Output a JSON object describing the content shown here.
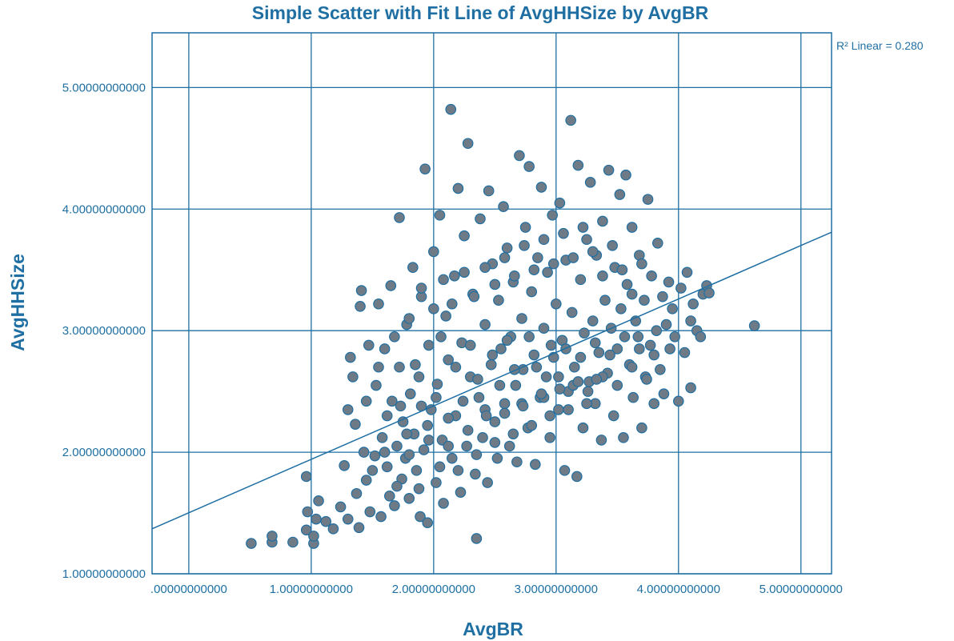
{
  "chart_data": {
    "type": "scatter",
    "title": "Simple Scatter with Fit Line of AvgHHSize by AvgBR",
    "xlabel": "AvgBR",
    "ylabel": "AvgHHSize",
    "xlim": [
      -0.3,
      5.25
    ],
    "ylim": [
      1.0,
      5.45
    ],
    "x_ticks": [
      0,
      1,
      2,
      3,
      4,
      5
    ],
    "y_ticks": [
      1,
      2,
      3,
      4,
      5
    ],
    "x_tick_labels": [
      ".00000000000",
      "1.00000000000",
      "2.00000000000",
      "3.00000000000",
      "4.00000000000",
      "5.00000000000"
    ],
    "y_tick_labels": [
      "1.00000000000",
      "2.00000000000",
      "3.00000000000",
      "4.00000000000",
      "5.00000000000"
    ],
    "grid": true,
    "fit_line": {
      "type": "linear",
      "r2_label": "R² Linear = 0.280",
      "x": [
        -0.3,
        5.25
      ],
      "y": [
        1.37,
        3.81
      ]
    },
    "colors": {
      "axis": "#1f6fa3",
      "marker_fill": "#6e7b86",
      "marker_edge": "#1f6fa3",
      "line": "#1f6fa3"
    },
    "points": [
      [
        0.51,
        1.25
      ],
      [
        0.68,
        1.26
      ],
      [
        0.68,
        1.31
      ],
      [
        0.85,
        1.26
      ],
      [
        0.96,
        1.36
      ],
      [
        0.97,
        1.51
      ],
      [
        0.96,
        1.8
      ],
      [
        1.02,
        1.25
      ],
      [
        1.02,
        1.31
      ],
      [
        1.04,
        1.45
      ],
      [
        1.06,
        1.6
      ],
      [
        1.12,
        1.43
      ],
      [
        1.18,
        1.37
      ],
      [
        1.24,
        1.55
      ],
      [
        1.27,
        1.89
      ],
      [
        1.3,
        1.45
      ],
      [
        1.3,
        2.35
      ],
      [
        1.32,
        2.78
      ],
      [
        1.34,
        2.62
      ],
      [
        1.36,
        2.23
      ],
      [
        1.37,
        1.66
      ],
      [
        1.39,
        1.38
      ],
      [
        1.4,
        3.2
      ],
      [
        1.41,
        3.33
      ],
      [
        1.43,
        2.0
      ],
      [
        1.45,
        1.77
      ],
      [
        1.47,
        2.88
      ],
      [
        1.48,
        1.51
      ],
      [
        1.52,
        1.97
      ],
      [
        1.53,
        2.55
      ],
      [
        1.55,
        3.22
      ],
      [
        1.57,
        1.47
      ],
      [
        1.58,
        2.12
      ],
      [
        1.6,
        2.85
      ],
      [
        1.62,
        1.88
      ],
      [
        1.64,
        1.64
      ],
      [
        1.65,
        3.37
      ],
      [
        1.66,
        2.42
      ],
      [
        1.68,
        1.56
      ],
      [
        1.7,
        2.05
      ],
      [
        1.72,
        2.7
      ],
      [
        1.72,
        3.93
      ],
      [
        1.74,
        1.78
      ],
      [
        1.75,
        2.25
      ],
      [
        1.77,
        1.95
      ],
      [
        1.78,
        3.05
      ],
      [
        1.8,
        1.62
      ],
      [
        1.81,
        2.48
      ],
      [
        1.83,
        3.52
      ],
      [
        1.84,
        2.15
      ],
      [
        1.86,
        1.85
      ],
      [
        1.88,
        2.62
      ],
      [
        1.89,
        1.47
      ],
      [
        1.9,
        3.28
      ],
      [
        1.92,
        2.02
      ],
      [
        1.93,
        4.33
      ],
      [
        1.95,
        1.42
      ],
      [
        1.96,
        2.88
      ],
      [
        1.98,
        2.35
      ],
      [
        2.0,
        3.65
      ],
      [
        2.02,
        1.75
      ],
      [
        2.03,
        2.56
      ],
      [
        2.05,
        3.95
      ],
      [
        2.07,
        2.1
      ],
      [
        2.08,
        1.58
      ],
      [
        2.1,
        3.12
      ],
      [
        2.12,
        2.76
      ],
      [
        2.14,
        4.82
      ],
      [
        2.15,
        1.95
      ],
      [
        2.17,
        3.45
      ],
      [
        2.18,
        2.3
      ],
      [
        2.2,
        4.17
      ],
      [
        2.22,
        1.67
      ],
      [
        2.23,
        2.9
      ],
      [
        2.25,
        3.78
      ],
      [
        2.27,
        2.05
      ],
      [
        2.28,
        4.54
      ],
      [
        2.3,
        2.62
      ],
      [
        2.32,
        3.3
      ],
      [
        2.34,
        1.82
      ],
      [
        2.35,
        1.29
      ],
      [
        2.37,
        2.45
      ],
      [
        2.38,
        3.92
      ],
      [
        2.4,
        2.12
      ],
      [
        2.42,
        3.05
      ],
      [
        2.44,
        1.75
      ],
      [
        2.45,
        4.15
      ],
      [
        2.47,
        2.72
      ],
      [
        2.48,
        3.55
      ],
      [
        2.5,
        2.25
      ],
      [
        2.52,
        1.95
      ],
      [
        2.53,
        3.25
      ],
      [
        2.55,
        2.85
      ],
      [
        2.57,
        4.02
      ],
      [
        2.58,
        2.4
      ],
      [
        2.6,
        3.68
      ],
      [
        2.62,
        2.05
      ],
      [
        2.63,
        2.95
      ],
      [
        2.65,
        3.4
      ],
      [
        2.67,
        2.55
      ],
      [
        2.68,
        1.92
      ],
      [
        2.7,
        4.44
      ],
      [
        2.72,
        3.1
      ],
      [
        2.73,
        2.68
      ],
      [
        2.75,
        3.85
      ],
      [
        2.77,
        2.2
      ],
      [
        2.78,
        4.35
      ],
      [
        2.8,
        3.32
      ],
      [
        2.82,
        2.8
      ],
      [
        2.83,
        1.9
      ],
      [
        2.85,
        3.6
      ],
      [
        2.87,
        2.45
      ],
      [
        2.88,
        4.18
      ],
      [
        2.9,
        3.02
      ],
      [
        2.92,
        2.62
      ],
      [
        2.93,
        3.48
      ],
      [
        2.95,
        2.12
      ],
      [
        2.97,
        3.95
      ],
      [
        2.98,
        2.78
      ],
      [
        3.0,
        3.22
      ],
      [
        3.02,
        2.35
      ],
      [
        3.03,
        4.05
      ],
      [
        3.05,
        2.92
      ],
      [
        3.07,
        1.85
      ],
      [
        3.08,
        3.58
      ],
      [
        3.1,
        2.5
      ],
      [
        3.12,
        4.73
      ],
      [
        3.13,
        3.15
      ],
      [
        3.15,
        2.7
      ],
      [
        3.17,
        1.8
      ],
      [
        3.18,
        4.36
      ],
      [
        3.2,
        3.42
      ],
      [
        3.22,
        2.2
      ],
      [
        3.23,
        2.98
      ],
      [
        3.25,
        3.75
      ],
      [
        3.27,
        2.58
      ],
      [
        3.28,
        4.22
      ],
      [
        3.3,
        3.08
      ],
      [
        3.32,
        2.4
      ],
      [
        3.33,
        3.62
      ],
      [
        3.35,
        2.82
      ],
      [
        3.37,
        2.1
      ],
      [
        3.38,
        3.9
      ],
      [
        3.4,
        3.25
      ],
      [
        3.42,
        2.65
      ],
      [
        3.43,
        4.32
      ],
      [
        3.45,
        3.02
      ],
      [
        3.47,
        2.3
      ],
      [
        3.48,
        3.52
      ],
      [
        3.5,
        2.85
      ],
      [
        3.52,
        4.12
      ],
      [
        3.53,
        3.18
      ],
      [
        3.55,
        2.12
      ],
      [
        3.57,
        4.28
      ],
      [
        3.58,
        3.38
      ],
      [
        3.6,
        2.72
      ],
      [
        3.62,
        3.85
      ],
      [
        3.63,
        2.45
      ],
      [
        3.65,
        3.08
      ],
      [
        3.67,
        2.95
      ],
      [
        3.68,
        3.62
      ],
      [
        3.7,
        2.2
      ],
      [
        3.72,
        3.25
      ],
      [
        3.73,
        2.62
      ],
      [
        3.75,
        4.08
      ],
      [
        3.77,
        2.88
      ],
      [
        3.78,
        3.45
      ],
      [
        3.8,
        2.4
      ],
      [
        3.82,
        3.0
      ],
      [
        3.83,
        3.72
      ],
      [
        3.85,
        2.68
      ],
      [
        3.87,
        3.28
      ],
      [
        3.88,
        2.48
      ],
      [
        3.9,
        3.05
      ],
      [
        3.92,
        3.4
      ],
      [
        3.93,
        2.85
      ],
      [
        3.95,
        3.18
      ],
      [
        3.97,
        2.95
      ],
      [
        4.0,
        2.42
      ],
      [
        4.02,
        3.35
      ],
      [
        4.05,
        2.82
      ],
      [
        4.07,
        3.48
      ],
      [
        4.1,
        3.08
      ],
      [
        4.1,
        2.53
      ],
      [
        4.12,
        3.22
      ],
      [
        4.15,
        3.0
      ],
      [
        4.18,
        2.95
      ],
      [
        4.2,
        3.3
      ],
      [
        4.23,
        3.37
      ],
      [
        4.25,
        3.31
      ],
      [
        4.62,
        3.04
      ],
      [
        1.45,
        2.42
      ],
      [
        1.55,
        2.7
      ],
      [
        1.62,
        2.3
      ],
      [
        1.68,
        2.95
      ],
      [
        1.73,
        2.38
      ],
      [
        1.78,
        2.15
      ],
      [
        1.85,
        2.72
      ],
      [
        1.9,
        2.38
      ],
      [
        1.96,
        2.1
      ],
      [
        2.02,
        2.45
      ],
      [
        2.06,
        2.95
      ],
      [
        2.12,
        2.28
      ],
      [
        2.18,
        2.7
      ],
      [
        2.24,
        2.42
      ],
      [
        2.3,
        2.88
      ],
      [
        2.36,
        2.6
      ],
      [
        2.42,
        2.35
      ],
      [
        2.48,
        2.8
      ],
      [
        2.54,
        2.55
      ],
      [
        2.6,
        2.92
      ],
      [
        2.66,
        2.68
      ],
      [
        2.72,
        2.4
      ],
      [
        2.78,
        2.95
      ],
      [
        2.84,
        2.7
      ],
      [
        2.9,
        2.45
      ],
      [
        2.96,
        2.88
      ],
      [
        3.02,
        2.62
      ],
      [
        3.08,
        2.85
      ],
      [
        3.14,
        2.55
      ],
      [
        3.2,
        2.78
      ],
      [
        3.26,
        2.5
      ],
      [
        3.32,
        2.9
      ],
      [
        3.38,
        2.62
      ],
      [
        3.44,
        2.8
      ],
      [
        3.5,
        2.55
      ],
      [
        3.56,
        2.95
      ],
      [
        3.62,
        2.7
      ],
      [
        3.68,
        2.85
      ],
      [
        3.74,
        2.6
      ],
      [
        3.8,
        2.8
      ],
      [
        1.5,
        1.85
      ],
      [
        1.6,
        2.0
      ],
      [
        1.7,
        1.72
      ],
      [
        1.8,
        1.98
      ],
      [
        1.88,
        1.7
      ],
      [
        1.95,
        2.22
      ],
      [
        2.05,
        1.88
      ],
      [
        2.12,
        2.05
      ],
      [
        2.2,
        1.85
      ],
      [
        2.28,
        2.18
      ],
      [
        2.35,
        1.98
      ],
      [
        2.43,
        2.3
      ],
      [
        2.5,
        2.08
      ],
      [
        2.58,
        2.32
      ],
      [
        2.65,
        2.15
      ],
      [
        2.73,
        2.38
      ],
      [
        2.8,
        2.22
      ],
      [
        2.88,
        2.48
      ],
      [
        2.95,
        2.3
      ],
      [
        3.03,
        2.52
      ],
      [
        3.1,
        2.35
      ],
      [
        3.18,
        2.58
      ],
      [
        3.25,
        2.4
      ],
      [
        3.33,
        2.6
      ],
      [
        1.8,
        3.1
      ],
      [
        1.9,
        3.35
      ],
      [
        2.0,
        3.18
      ],
      [
        2.08,
        3.42
      ],
      [
        2.15,
        3.22
      ],
      [
        2.25,
        3.48
      ],
      [
        2.33,
        3.28
      ],
      [
        2.42,
        3.52
      ],
      [
        2.5,
        3.38
      ],
      [
        2.58,
        3.6
      ],
      [
        2.66,
        3.45
      ],
      [
        2.74,
        3.7
      ],
      [
        2.82,
        3.5
      ],
      [
        2.9,
        3.75
      ],
      [
        2.98,
        3.55
      ],
      [
        3.06,
        3.8
      ],
      [
        3.14,
        3.6
      ],
      [
        3.22,
        3.85
      ],
      [
        3.3,
        3.65
      ],
      [
        3.38,
        3.45
      ],
      [
        3.46,
        3.7
      ],
      [
        3.54,
        3.5
      ],
      [
        3.62,
        3.3
      ],
      [
        3.7,
        3.55
      ]
    ]
  }
}
